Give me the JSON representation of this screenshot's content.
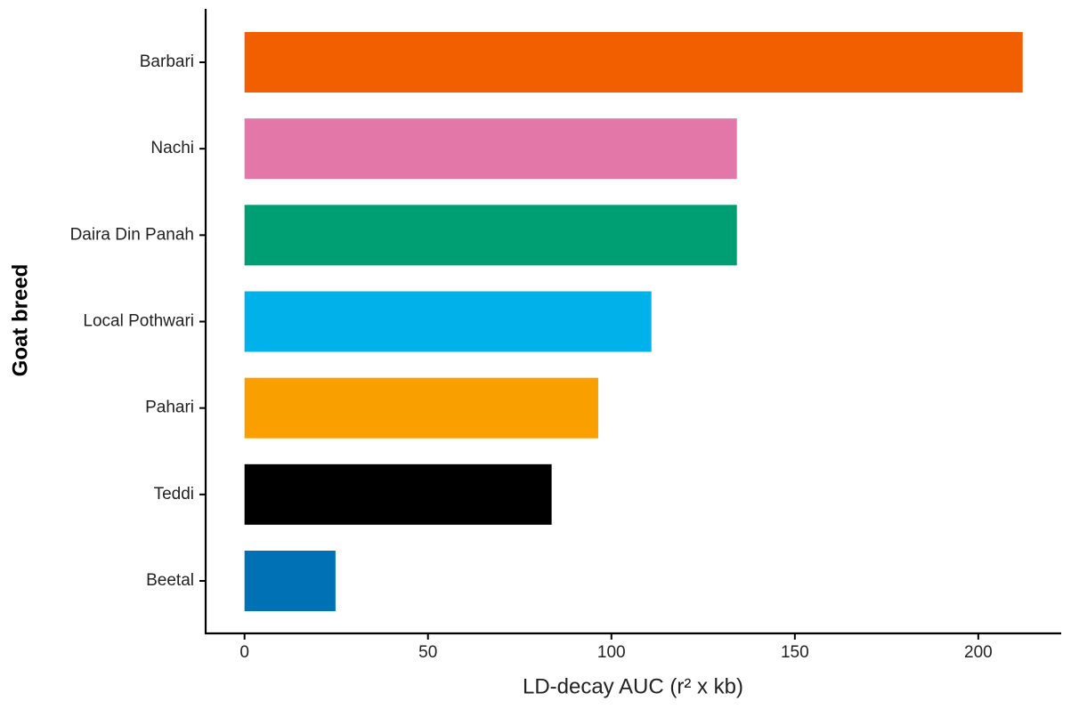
{
  "chart_data": {
    "type": "bar",
    "orientation": "horizontal",
    "xlabel": "LD-decay AUC (r² x kb)",
    "ylabel": "Goat breed",
    "categories": [
      "Barbari",
      "Nachi",
      "Daira Din Panah",
      "Local Pothwari",
      "Pahari",
      "Teddi",
      "Beetal"
    ],
    "values": [
      212.1,
      134.2,
      134.2,
      110.9,
      96.4,
      83.7,
      24.8
    ],
    "colors": [
      "#f25f00",
      "#e377a8",
      "#009e73",
      "#00b2e9",
      "#f99f00",
      "#000000",
      "#0071b4"
    ],
    "xlim": [
      -10.6,
      222.6
    ],
    "xticks": [
      0,
      50,
      100,
      150,
      200
    ],
    "grid": false
  }
}
